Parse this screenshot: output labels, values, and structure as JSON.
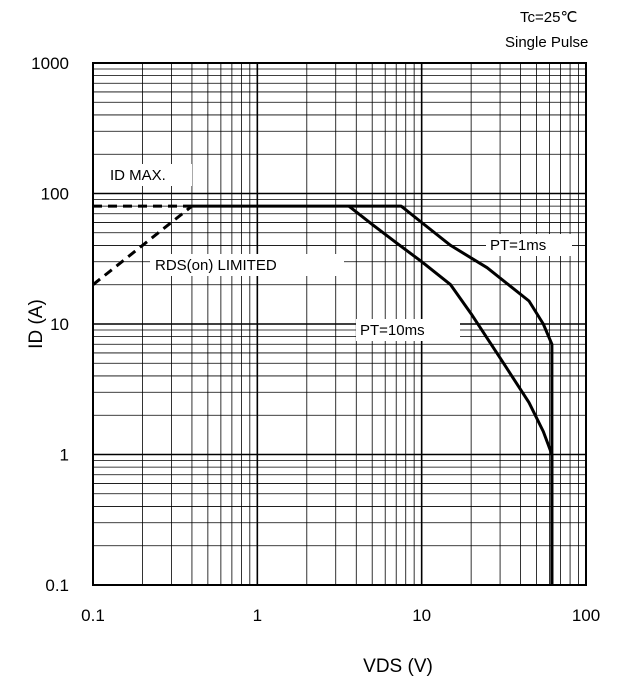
{
  "chart_data": {
    "type": "line",
    "xlabel": "VDS (V)",
    "ylabel": "ID (A)",
    "x_scale": "log",
    "y_scale": "log",
    "xlim": [
      0.1,
      100
    ],
    "ylim": [
      0.1,
      1000
    ],
    "x_ticks": [
      "0.1",
      "1",
      "10",
      "100"
    ],
    "y_ticks": [
      "0.1",
      "1",
      "10",
      "100",
      "1000"
    ],
    "grid": true,
    "conditions": [
      "Tc=25℃",
      "Single Pulse"
    ],
    "series": [
      {
        "name": "ID MAX.",
        "style": "dashed",
        "points": [
          [
            0.1,
            80
          ],
          [
            0.4,
            80
          ]
        ]
      },
      {
        "name": "RDS(on) LIMITED",
        "style": "dashed",
        "points": [
          [
            0.1,
            20
          ],
          [
            0.4,
            80
          ]
        ]
      },
      {
        "name": "PT=1ms",
        "style": "solid",
        "points": [
          [
            0.4,
            80
          ],
          [
            7.5,
            80
          ],
          [
            10,
            60
          ],
          [
            15,
            40
          ],
          [
            25,
            27
          ],
          [
            45,
            15
          ],
          [
            55,
            10
          ],
          [
            62,
            7
          ],
          [
            62,
            0.1
          ]
        ]
      },
      {
        "name": "PT=10ms",
        "style": "solid",
        "points": [
          [
            3.6,
            80
          ],
          [
            5,
            58
          ],
          [
            7,
            42
          ],
          [
            10,
            30
          ],
          [
            15,
            20
          ],
          [
            20,
            12
          ],
          [
            30,
            5.5
          ],
          [
            45,
            2.5
          ],
          [
            55,
            1.5
          ],
          [
            62,
            1
          ],
          [
            62,
            0.1
          ]
        ]
      }
    ],
    "annotations": [
      {
        "text": "ID MAX."
      },
      {
        "text": "RDS(on) LIMITED"
      },
      {
        "text": "PT=1ms"
      },
      {
        "text": "PT=10ms"
      }
    ]
  }
}
